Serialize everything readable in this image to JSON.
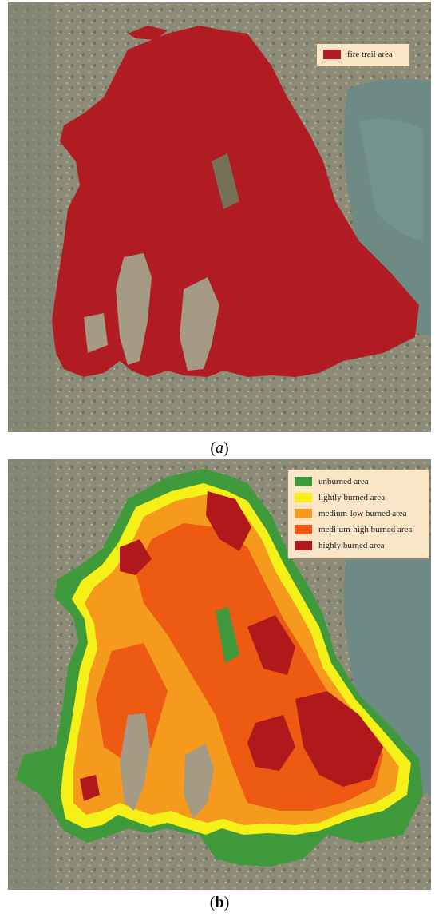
{
  "panel_a": {
    "caption": "(a)",
    "caption_letter": "a",
    "legend": [
      {
        "label": "fire trail area",
        "color": "#b01c22"
      }
    ]
  },
  "panel_b": {
    "caption": "(b)",
    "caption_letter": "b",
    "legend": [
      {
        "label": "unburned area",
        "color": "#3e9a3a"
      },
      {
        "label": "lightly burned area",
        "color": "#f4f018"
      },
      {
        "label": "medium-low burned area",
        "color": "#f59a1c"
      },
      {
        "label": "medi-um-high burned area",
        "color": "#ee5a12"
      },
      {
        "label": "highly burned area",
        "color": "#b0181c"
      }
    ]
  },
  "colors": {
    "ground": "#8a8a78",
    "lake": "#6d8a84",
    "fire_trail": "#b01c22"
  }
}
